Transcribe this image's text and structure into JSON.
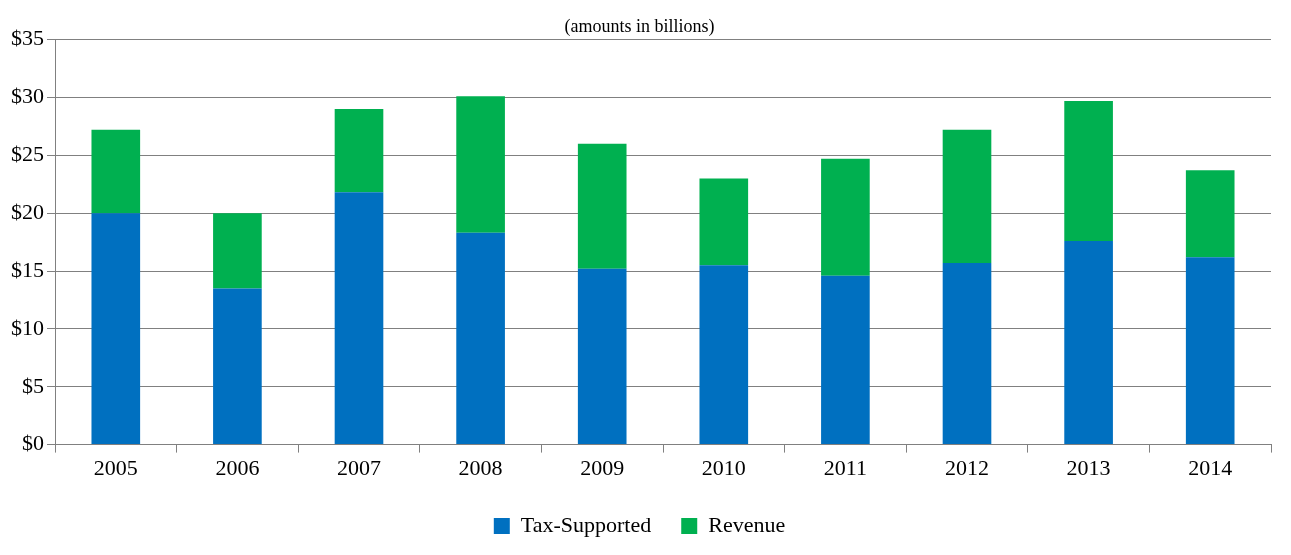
{
  "chart_data": {
    "type": "bar",
    "subtitle": "(amounts in billions)",
    "categories": [
      "2005",
      "2006",
      "2007",
      "2008",
      "2009",
      "2010",
      "2011",
      "2012",
      "2013",
      "2014"
    ],
    "stacked": true,
    "series": [
      {
        "name": "Tax-Supported",
        "color": "#0070c0",
        "values": [
          20.0,
          13.5,
          21.8,
          18.3,
          15.2,
          15.5,
          14.6,
          15.7,
          17.6,
          16.2
        ]
      },
      {
        "name": "Revenue",
        "color": "#00b050",
        "values": [
          7.2,
          6.5,
          7.2,
          11.8,
          10.8,
          7.5,
          10.1,
          11.5,
          12.1,
          7.5
        ]
      }
    ],
    "ylim": [
      0,
      35
    ],
    "yticks": [
      {
        "value": 0,
        "label": "$0"
      },
      {
        "value": 5,
        "label": "$5"
      },
      {
        "value": 10,
        "label": "$10"
      },
      {
        "value": 15,
        "label": "$15"
      },
      {
        "value": 20,
        "label": "$20"
      },
      {
        "value": 25,
        "label": "$25"
      },
      {
        "value": 30,
        "label": "$30"
      },
      {
        "value": 35,
        "label": "$35"
      }
    ],
    "grid": "y",
    "legend": "bottom"
  }
}
